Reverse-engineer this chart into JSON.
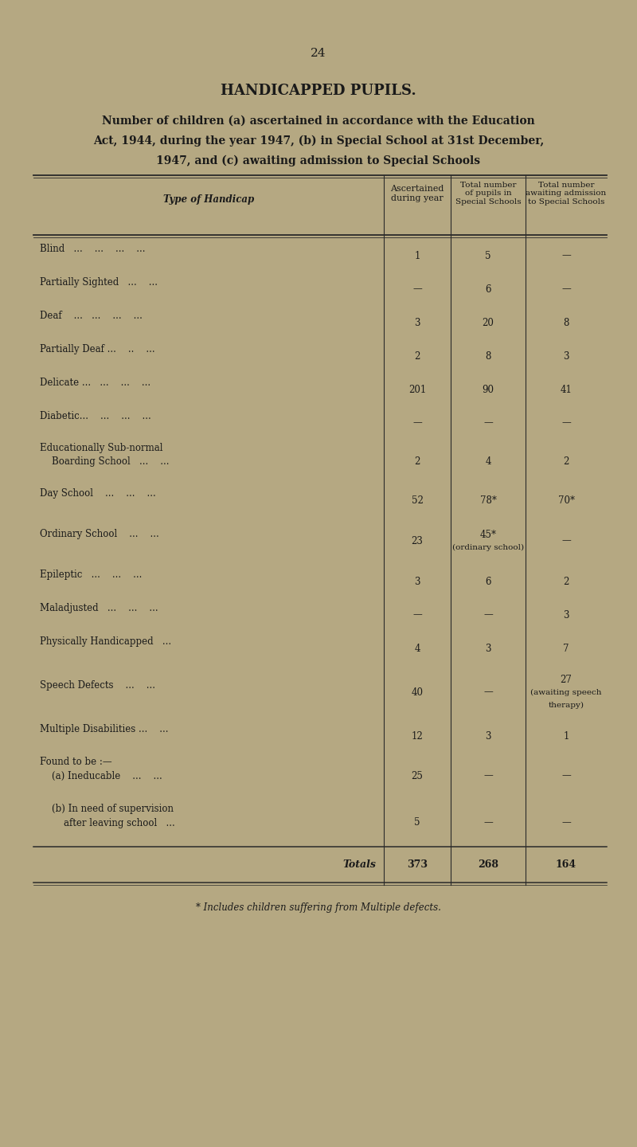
{
  "page_number": "24",
  "title": "HANDICAPPED PUPILS.",
  "subtitle_lines": [
    "Number of children (a) ascertained in accordance with the Education",
    "Act, 1944, during the year 1947, (b) in Special School at 31st December,",
    "1947, and (c) awaiting admission to Special Schools"
  ],
  "col_headers": [
    "Type of Handicap",
    "Ascertained\nduring year",
    "Total number\nof pupils in\nSpecial Schools",
    "Total number\nawaiting admission\nto Special Schools"
  ],
  "rows": [
    {
      "label": [
        "Blind   ...    ...    ...    ..."
      ],
      "col1": "1",
      "col2": "5",
      "col3": "—"
    },
    {
      "label": [
        "Partially Sighted   ...    ..."
      ],
      "col1": "—",
      "col2": "6",
      "col3": "—"
    },
    {
      "label": [
        "Deaf    ...   ...    ...    ..."
      ],
      "col1": "3",
      "col2": "20",
      "col3": "8"
    },
    {
      "label": [
        "Partially Deaf ...    ..    ..."
      ],
      "col1": "2",
      "col2": "8",
      "col3": "3"
    },
    {
      "label": [
        "Delicate ...   ...    ...    ..."
      ],
      "col1": "201",
      "col2": "90",
      "col3": "41"
    },
    {
      "label": [
        "Diabetic...    ...    ...    ..."
      ],
      "col1": "—",
      "col2": "—",
      "col3": "—"
    },
    {
      "label": [
        "Educationally Sub-normal",
        "    Boarding School   ...    ..."
      ],
      "col1": "2",
      "col2": "4",
      "col3": "2"
    },
    {
      "label": [
        "Day School    ...    ...    ..."
      ],
      "col1": "52",
      "col2": "78*",
      "col3": "70*"
    },
    {
      "label": [
        "Ordinary School    ...    ..."
      ],
      "col1": "23",
      "col2": "45*\n(ordinary school)",
      "col3": "—"
    },
    {
      "label": [
        "Epileptic   ...    ...    ..."
      ],
      "col1": "3",
      "col2": "6",
      "col3": "2"
    },
    {
      "label": [
        "Maladjusted   ...    ...    ..."
      ],
      "col1": "—",
      "col2": "—",
      "col3": "3"
    },
    {
      "label": [
        "Physically Handicapped   ..."
      ],
      "col1": "4",
      "col2": "3",
      "col3": "7"
    },
    {
      "label": [
        "Speech Defects    ...    ..."
      ],
      "col1": "40",
      "col2": "—",
      "col3": "27\n(awaiting speech\ntherapy)"
    },
    {
      "label": [
        "Multiple Disabilities ...    ..."
      ],
      "col1": "12",
      "col2": "3",
      "col3": "1"
    },
    {
      "label": [
        "Found to be :—",
        "    (a) Ineducable    ...    ..."
      ],
      "col1": "25",
      "col2": "—",
      "col3": "—"
    },
    {
      "label": [
        "    (b) In need of supervision",
        "        after leaving school   ..."
      ],
      "col1": "5",
      "col2": "—",
      "col3": "—"
    }
  ],
  "totals": {
    "label": "Totals",
    "col1": "373",
    "col2": "268",
    "col3": "164"
  },
  "footnote": "* Includes children suffering from Multiple defects.",
  "bg_color": "#b5a882",
  "text_color": "#1a1a1a",
  "line_color": "#2a2a2a"
}
